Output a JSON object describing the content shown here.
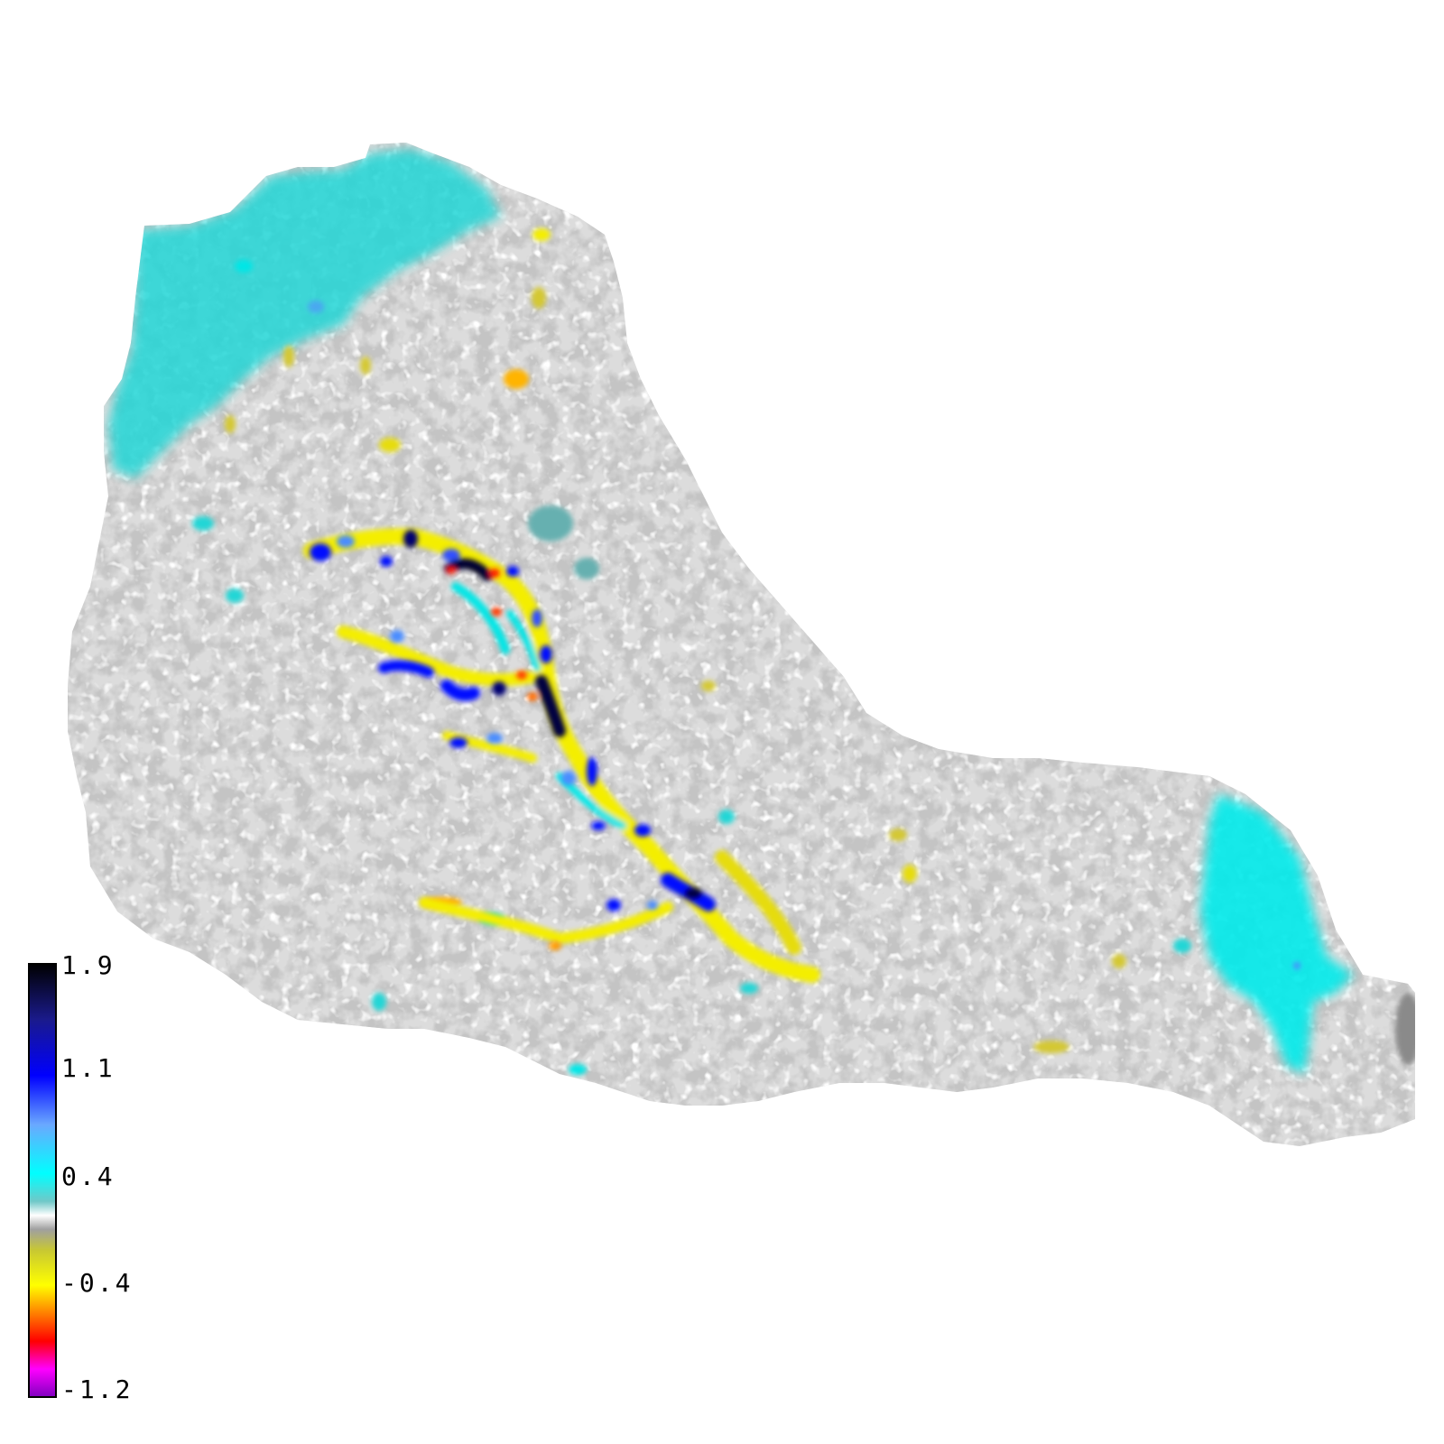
{
  "colorbar": {
    "ticks": [
      "1.9",
      "1.1",
      "0.4",
      "-0.4",
      "-1.2"
    ],
    "min": -1.2,
    "max": 1.9,
    "stops": [
      {
        "value": 1.9,
        "color": "#000000"
      },
      {
        "value": 1.5,
        "color": "#1a1a8c"
      },
      {
        "value": 1.1,
        "color": "#0000ff"
      },
      {
        "value": 0.75,
        "color": "#6aa8ff"
      },
      {
        "value": 0.4,
        "color": "#00ffff"
      },
      {
        "value": 0.2,
        "color": "#70c8c8"
      },
      {
        "value": 0.1,
        "color": "#ffffff"
      },
      {
        "value": 0.0,
        "color": "#a0a0a0"
      },
      {
        "value": -0.15,
        "color": "#c8c832"
      },
      {
        "value": -0.4,
        "color": "#ffff00"
      },
      {
        "value": -0.8,
        "color": "#ff0000"
      },
      {
        "value": -1.0,
        "color": "#ff00ff"
      },
      {
        "value": -1.2,
        "color": "#8000c0"
      }
    ]
  },
  "colors": {
    "region_base": "#d9d9d9",
    "region_light": "#f6f6f6",
    "region_dark": "#8f8f8f",
    "cyan": "#00f0f0",
    "teal": "#44b8b8",
    "olive": "#c8c032",
    "yellow": "#f4ee00",
    "orange": "#ff9a00",
    "red": "#ff1a00",
    "blue": "#1020ff",
    "navy": "#000046"
  }
}
